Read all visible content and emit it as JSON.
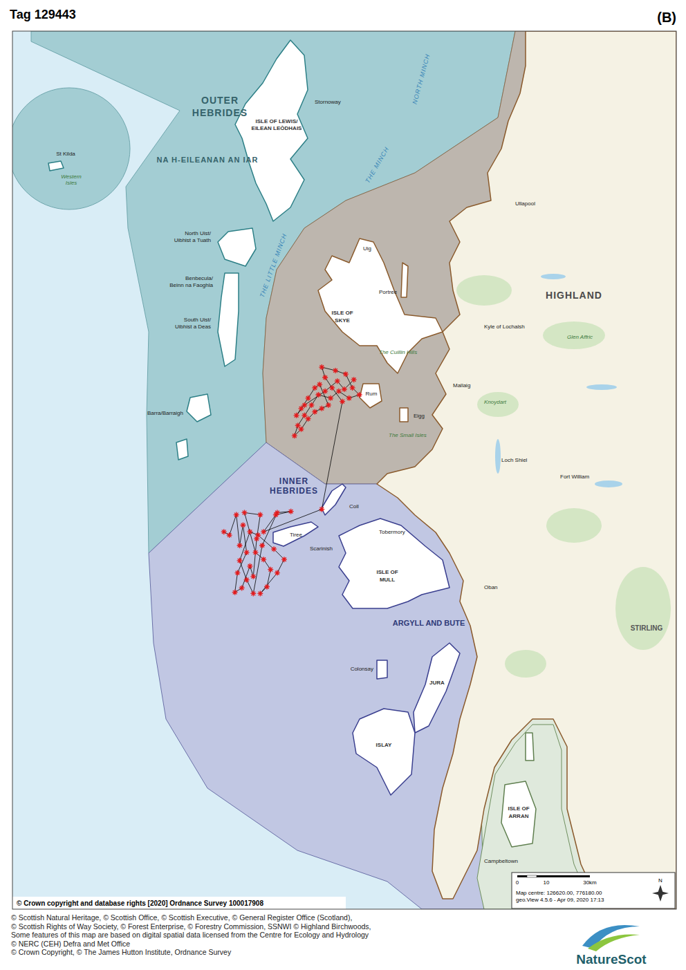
{
  "header": {
    "title": "Tag 129443",
    "panel": "(B)"
  },
  "chart_data": {
    "type": "scatter",
    "color": "#e31a1c",
    "marker": "star",
    "line_style": "solid",
    "x": [
      76.3,
      78.6,
      81.5,
      82.9,
      84.3,
      85.8,
      82.0,
      80.9,
      83.8,
      87.2,
      88.6,
      90.0,
      91.5,
      84.9,
      89.5,
      92.9,
      95.8,
      94.3,
      91.5,
      98.6,
      101.5,
      97.2,
      90.6,
      87.2,
      82.9,
      85.8,
      88.6,
      92.3,
      98.6,
      104.3,
      98.0,
      92.9,
      117.2,
      125.8,
      121.5,
      118.6,
      117.2,
      122.9,
      127.2,
      130.0,
      132.9,
      128.6,
      124.3,
      120.9,
      115.8,
      112.9,
      110.0,
      107.2,
      105.8,
      108.6,
      111.5,
      114.3,
      117.2,
      120.0,
      116.3,
      114.3,
      111.5,
      108.6,
      106.6,
      110.0,
      118.6,
      123.7,
      126.6,
      130.6
    ],
    "values": [
      750.5,
      749.1,
      757.6,
      744.8,
      753.3,
      741.9,
      733.4,
      725.3,
      727.1,
      736.2,
      731.9,
      747.6,
      757.6,
      758.5,
      741.9,
      739.0,
      734.8,
      727.6,
      724.8,
      733.4,
      739.0,
      743.3,
      749.1,
      750.5,
      738.5,
      730.5,
      724.8,
      744.8,
      758.5,
      759.0,
      757.6,
      750.5,
      759.9,
      804.8,
      810.5,
      814.8,
      819.1,
      817.7,
      816.2,
      810.5,
      807.6,
      806.2,
      809.1,
      806.2,
      807.6,
      803.3,
      799.0,
      794.8,
      790.5,
      793.3,
      797.6,
      800.5,
      801.9,
      803.3,
      811.9,
      810.5,
      806.2,
      801.9,
      799.0,
      803.3,
      809.1,
      813.3,
      809.9,
      813.9
    ],
    "xlim": [
      -10.5,
      263.8
    ],
    "ylim": [
      594.8,
      957.6
    ],
    "tick_labels": false,
    "grid": false
  },
  "map_labels": [
    "OUTER",
    "HEBRIDES",
    "NA H-EILEANAN AN IAR",
    "ISLE OF LEWIS/",
    "EILEAN LEÒDHAIS",
    "Stornoway",
    "St Kilda",
    "Western",
    "Isles",
    "North Uist/",
    "Uibhist a Tuath",
    "Benbecula/",
    "Beinn na Faoghla",
    "South Uist/",
    "Uibhist a Deas",
    "Barra/Barraigh",
    "THE LITTLE MINCH",
    "THE MINCH",
    "NORTH MINCH",
    "ISLE OF",
    "SKYE",
    "Uig",
    "Portree",
    "Kyle of Lochalsh",
    "Rum",
    "Eigg",
    "The Small Isles",
    "Mallaig",
    "INNER",
    "HEBRIDES",
    "Coll",
    "Tiree",
    "Scarinish",
    "ISLE OF",
    "MULL",
    "Tobermory",
    "Oban",
    "Fort William",
    "HIGHLAND",
    "ARGYLL AND BUTE",
    "Colonsay",
    "JURA",
    "ISLAY",
    "ISLE OF",
    "ARRAN",
    "Campbeltown",
    "Ullapool",
    "Loch Shiel",
    "Glen Affric",
    "STIRLING",
    "Knoydart",
    "The Cuillin Hills"
  ],
  "scale_bar": {
    "labels": [
      "0",
      "10",
      "30km"
    ],
    "map_centre": "Map centre: 126620.00, 776180.00",
    "version": "geo.View 4.5.6 - Apr 09, 2020 17:13",
    "north": "N"
  },
  "copyright": "© Crown copyright and database rights [2020] Ordnance Survey 100017908",
  "credits": [
    "© Scottish Natural Heritage, © Scottish Office, © Scottish Executive, © General Register Office (Scotland),",
    "© Scottish Rights of Way Society, © Forest Enterprise, © Forestry Commission, SSNWI © Highland Birchwoods,",
    "Some features of this map are based on digital spatial data licensed from the Centre for Ecology and Hydrology",
    "© NERC (CEH) Defra and Met Office",
    "© Crown Copyright, © The James Hutton Institute, Ordnance Survey"
  ],
  "logo": "NatureScot"
}
